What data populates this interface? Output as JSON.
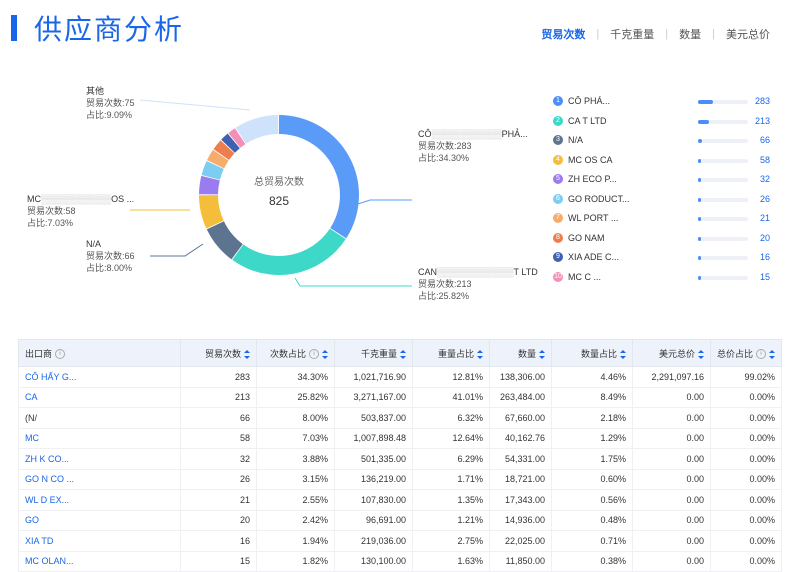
{
  "header": {
    "title": "供应商分析",
    "tabs": [
      "贸易次数",
      "千克重量",
      "数量",
      "美元总价"
    ],
    "active_tab": "贸易次数"
  },
  "donut": {
    "center_label": "总贸易次数",
    "center_value": "825",
    "segments": [
      {
        "name": "CÔ...PHẢ...",
        "value": 283,
        "color": "#5b9bf8"
      },
      {
        "name": "CAN...T LTD",
        "value": 213,
        "color": "#3dd8c8"
      },
      {
        "name": "N/A",
        "value": 66,
        "color": "#5d7491"
      },
      {
        "name": "MC...OS CA",
        "value": 58,
        "color": "#f5bd3c"
      },
      {
        "name": "ZH...ECO P...",
        "value": 32,
        "color": "#9b7cf0"
      },
      {
        "name": "GO...PRODUCT...",
        "value": 26,
        "color": "#7bcdf2"
      },
      {
        "name": "WL...PORT...",
        "value": 21,
        "color": "#f6ad6c"
      },
      {
        "name": "GO...NAM",
        "value": 20,
        "color": "#ee7e4e"
      },
      {
        "name": "XIA...ADE C...",
        "value": 16,
        "color": "#3f62b0"
      },
      {
        "name": "MC...C...",
        "value": 15,
        "color": "#f28fb8"
      },
      {
        "name": "其他",
        "value": 75,
        "color": "#cfe2fb"
      }
    ],
    "callouts": {
      "top_right": {
        "name": "CÔ",
        "name_tail": "PHẢ...",
        "count_label": "贸易次数:283",
        "pct_label": "占比:34.30%"
      },
      "bottom_right": {
        "name": "CAN",
        "name_tail": "T LTD",
        "count_label": "贸易次数:213",
        "pct_label": "占比:25.82%"
      },
      "bottom_left": {
        "name": "N/A",
        "count_label": "贸易次数:66",
        "pct_label": "占比:8.00%"
      },
      "mid_left": {
        "name": "MC",
        "name_tail": "OS ...",
        "count_label": "贸易次数:58",
        "pct_label": "占比:7.03%"
      },
      "top_left": {
        "name": "其他",
        "count_label": "贸易次数:75",
        "pct_label": "占比:9.09%"
      }
    }
  },
  "ranking": [
    {
      "rank": "1",
      "label": "CÔ          PHẢ...",
      "value": "283",
      "fraction": 0.34,
      "color": "#4a8ff7"
    },
    {
      "rank": "2",
      "label": "CA              T LTD",
      "value": "213",
      "fraction": 0.26,
      "color": "#3dd8c8"
    },
    {
      "rank": "3",
      "label": "N/A",
      "value": "66",
      "fraction": 0.08,
      "color": "#5d7491"
    },
    {
      "rank": "4",
      "label": "MC              OS CA",
      "value": "58",
      "fraction": 0.07,
      "color": "#f5bd3c"
    },
    {
      "rank": "5",
      "label": "ZH              ECO P...",
      "value": "32",
      "fraction": 0.04,
      "color": "#9b7cf0"
    },
    {
      "rank": "6",
      "label": "GO             RODUCT...",
      "value": "26",
      "fraction": 0.03,
      "color": "#7bcdf2"
    },
    {
      "rank": "7",
      "label": "WL              PORT ...",
      "value": "21",
      "fraction": 0.025,
      "color": "#f6ad6c"
    },
    {
      "rank": "8",
      "label": "GO              NAM",
      "value": "20",
      "fraction": 0.024,
      "color": "#ee7e4e"
    },
    {
      "rank": "9",
      "label": "XIA             ADE C...",
      "value": "16",
      "fraction": 0.02,
      "color": "#3f62b0"
    },
    {
      "rank": "10",
      "label": "MC              C ...",
      "value": "15",
      "fraction": 0.018,
      "color": "#f28fb8"
    }
  ],
  "table": {
    "headers": [
      "出口商",
      "贸易次数",
      "次数占比",
      "千克重量",
      "重量占比",
      "数量",
      "数量占比",
      "美元总价",
      "总价占比"
    ],
    "rows": [
      [
        "CÔ             HẤY G...",
        "283",
        "34.30%",
        "1,021,716.90",
        "12.81%",
        "138,306.00",
        "4.46%",
        "2,291,097.16",
        "99.02%"
      ],
      [
        "CA",
        "213",
        "25.82%",
        "3,271,167.00",
        "41.01%",
        "263,484.00",
        "8.49%",
        "0.00",
        "0.00%"
      ],
      [
        "(N/",
        "66",
        "8.00%",
        "503,837.00",
        "6.32%",
        "67,660.00",
        "2.18%",
        "0.00",
        "0.00%"
      ],
      [
        "MC",
        "58",
        "7.03%",
        "1,007,898.48",
        "12.64%",
        "40,162.76",
        "1.29%",
        "0.00",
        "0.00%"
      ],
      [
        "ZH               K CO...",
        "32",
        "3.88%",
        "501,335.00",
        "6.29%",
        "54,331.00",
        "1.75%",
        "0.00",
        "0.00%"
      ],
      [
        "GO              N CO ...",
        "26",
        "3.15%",
        "136,219.00",
        "1.71%",
        "18,721.00",
        "0.60%",
        "0.00",
        "0.00%"
      ],
      [
        "WL             D EX...",
        "21",
        "2.55%",
        "107,830.00",
        "1.35%",
        "17,343.00",
        "0.56%",
        "0.00",
        "0.00%"
      ],
      [
        "GO",
        "20",
        "2.42%",
        "96,691.00",
        "1.21%",
        "14,936.00",
        "0.48%",
        "0.00",
        "0.00%"
      ],
      [
        "XIA           TD",
        "16",
        "1.94%",
        "219,036.00",
        "2.75%",
        "22,025.00",
        "0.71%",
        "0.00",
        "0.00%"
      ],
      [
        "MC              OLAN...",
        "15",
        "1.82%",
        "130,100.00",
        "1.63%",
        "11,850.00",
        "0.38%",
        "0.00",
        "0.00%"
      ]
    ]
  }
}
